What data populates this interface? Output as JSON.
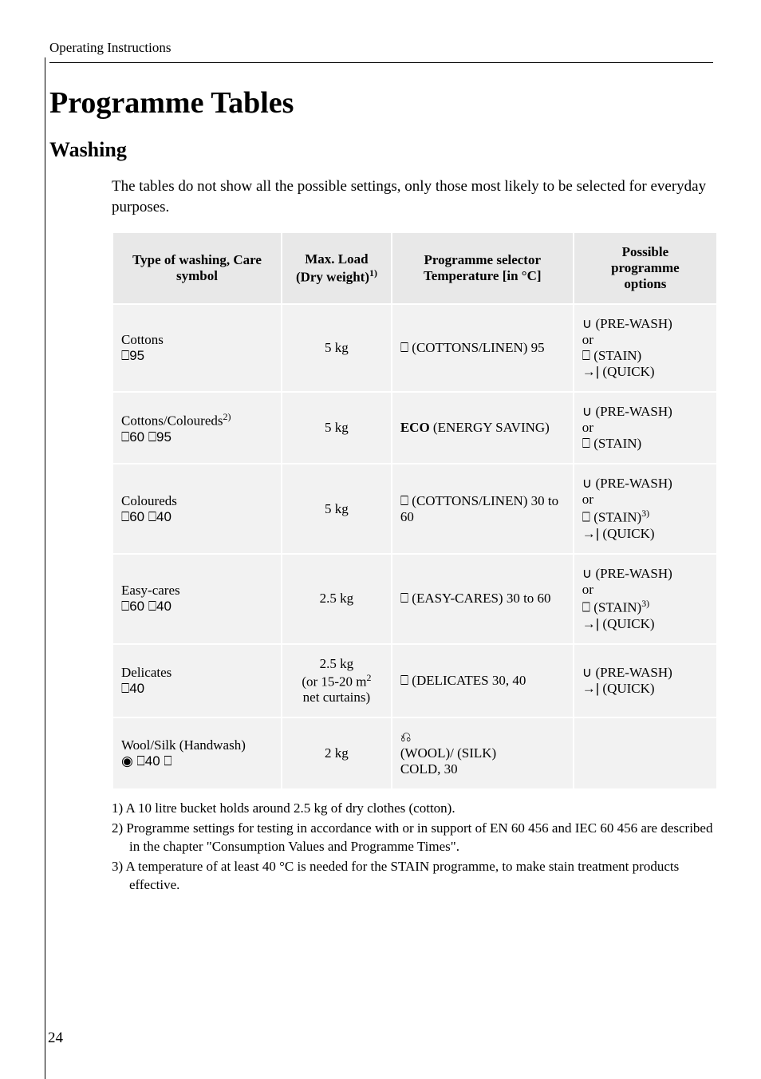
{
  "header_section": "Operating Instructions",
  "title": "Programme Tables",
  "subtitle": "Washing",
  "intro": "The tables do not show all the possible settings, only those most likely to be selected for everyday purposes.",
  "table": {
    "headers": {
      "col1": "Type of washing, Care symbol",
      "col2_line1": "Max. Load",
      "col2_line2": "(Dry weight)",
      "col2_sup": "1)",
      "col3_line1": "Programme selector",
      "col3_line2": "Temperature [in °C]",
      "col4_line1": "Possible",
      "col4_line2": "programme",
      "col4_line3": "options"
    },
    "rows": [
      {
        "type": "Cottons",
        "symbols": "⎕95",
        "load": "5 kg",
        "prog_icon": "⎕",
        "prog_text": " (COTTONS/LINEN) 95",
        "opts": [
          {
            "icon": "∪",
            "text": "(PRE-WASH)"
          },
          {
            "icon": "",
            "text": "or"
          },
          {
            "icon": "⎕",
            "text": " (STAIN)"
          },
          {
            "icon": "→|",
            "text": " (QUICK)"
          }
        ]
      },
      {
        "type": "Cottons/Coloureds",
        "type_sup": "2)",
        "symbols": "⎕60 ⎕95",
        "load": "5 kg",
        "prog_bold": "ECO",
        "prog_text": " (ENERGY SAVING)",
        "opts": [
          {
            "icon": "∪",
            "text": "(PRE-WASH)"
          },
          {
            "icon": "",
            "text": "or"
          },
          {
            "icon": "⎕",
            "text": " (STAIN)"
          }
        ]
      },
      {
        "type": "Coloureds",
        "symbols": "⎕60 ⎕40",
        "load": "5 kg",
        "prog_icon": "⎕",
        "prog_text": " (COTTONS/LINEN) 30 to 60",
        "opts": [
          {
            "icon": "∪",
            "text": "(PRE-WASH)"
          },
          {
            "icon": "",
            "text": "or"
          },
          {
            "icon": "⎕",
            "text": " (STAIN)",
            "sup": "3)"
          },
          {
            "icon": "→|",
            "text": " (QUICK)"
          }
        ]
      },
      {
        "type": "Easy-cares",
        "symbols": "⎕60 ⎕40",
        "load": "2.5 kg",
        "prog_icon": "⎕",
        "prog_text": " (EASY-CARES) 30 to 60",
        "opts": [
          {
            "icon": "∪",
            "text": "(PRE-WASH)"
          },
          {
            "icon": "",
            "text": "or"
          },
          {
            "icon": "⎕",
            "text": " (STAIN)",
            "sup": "3)"
          },
          {
            "icon": "→|",
            "text": " (QUICK)"
          }
        ]
      },
      {
        "type": "Delicates",
        "symbols": "⎕40",
        "load_line1": "2.5 kg",
        "load_line2": "(or 15-20 m",
        "load_sup": "2",
        "load_line3": " net curtains)",
        "prog_icon": "⎕",
        "prog_text": " (DELICATES 30, 40",
        "opts": [
          {
            "icon": "∪",
            "text": "(PRE-WASH)"
          },
          {
            "icon": "→|",
            "text": " (QUICK)"
          }
        ]
      },
      {
        "type": "Wool/Silk (Handwash)",
        "symbols": "◉ ⎕40 ⎕",
        "load": "2 kg",
        "prog_icon": "⎌",
        "prog_lines": [
          " (WOOL)/ (SILK)",
          "COLD, 30"
        ],
        "opts": []
      }
    ]
  },
  "footnotes": [
    "1) A 10 litre bucket holds around 2.5 kg of dry clothes (cotton).",
    "2) Programme settings for testing in accordance with or in support of EN 60 456 and IEC 60 456 are described in the chapter \"Consumption Values and Programme Times\".",
    "3) A temperature of at least 40 °C is needed for the STAIN programme, to make stain treatment products effective."
  ],
  "page_num": "24"
}
